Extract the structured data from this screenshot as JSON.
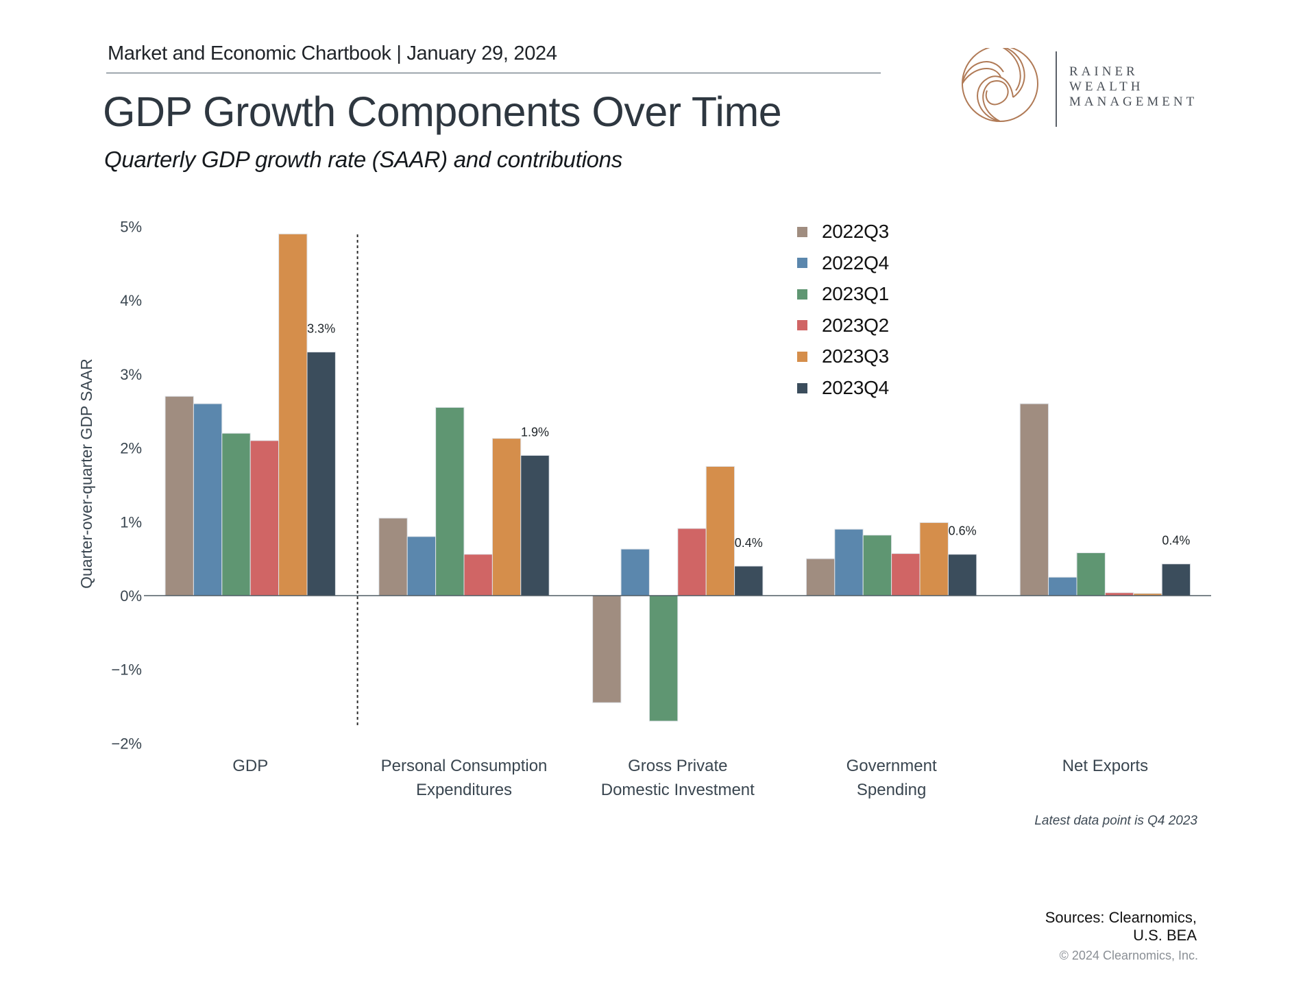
{
  "header": {
    "chartbook_label": "Market and Economic Chartbook | January 29, 2024",
    "title": "GDP Growth Components Over Time",
    "subtitle": "Quarterly GDP growth rate (SAAR) and contributions"
  },
  "logo": {
    "line1": "RAINER",
    "line2": "WEALTH",
    "line3": "MANAGEMENT",
    "icon": "spiral-circle-icon",
    "color": "#b07a56"
  },
  "chart_data": {
    "type": "bar",
    "title": "GDP Growth Components Over Time",
    "subtitle": "Quarterly GDP growth rate (SAAR) and contributions",
    "xlabel": "",
    "ylabel": "Quarter-over-quarter GDP SAAR",
    "ylim": [
      -2,
      5
    ],
    "yticks": [
      -2,
      -1,
      0,
      1,
      2,
      3,
      4,
      5
    ],
    "ytick_labels": [
      "−2%",
      "−1%",
      "0%",
      "1%",
      "2%",
      "3%",
      "4%",
      "5%"
    ],
    "grid": false,
    "legend_position": "top-right",
    "categories": [
      [
        "GDP"
      ],
      [
        "Personal Consumption",
        "Expenditures"
      ],
      [
        "Gross Private",
        "Domestic Investment"
      ],
      [
        "Government",
        "Spending"
      ],
      [
        "Net Exports"
      ]
    ],
    "series": [
      {
        "name": "2022Q3",
        "color": "#a08d80",
        "values": [
          2.7,
          1.05,
          -1.45,
          0.5,
          2.6
        ]
      },
      {
        "name": "2022Q4",
        "color": "#5b87ad",
        "values": [
          2.6,
          0.8,
          0.63,
          0.9,
          0.25
        ]
      },
      {
        "name": "2023Q1",
        "color": "#5f9672",
        "values": [
          2.2,
          2.55,
          -1.7,
          0.82,
          0.58
        ]
      },
      {
        "name": "2023Q2",
        "color": "#d06565",
        "values": [
          2.1,
          0.56,
          0.91,
          0.57,
          0.04
        ]
      },
      {
        "name": "2023Q3",
        "color": "#d58e4b",
        "values": [
          4.9,
          2.13,
          1.75,
          0.99,
          0.03
        ]
      },
      {
        "name": "2023Q4",
        "color": "#3b4d5c",
        "values": [
          3.3,
          1.9,
          0.4,
          0.56,
          0.43
        ]
      }
    ],
    "data_labels": [
      {
        "category_index": 0,
        "series": "2023Q4",
        "text": "3.3%"
      },
      {
        "category_index": 1,
        "series": "2023Q4",
        "text": "1.9%"
      },
      {
        "category_index": 2,
        "series": "2023Q4",
        "text": "0.4%"
      },
      {
        "category_index": 3,
        "series": "2023Q4",
        "text": "0.6%"
      },
      {
        "category_index": 4,
        "series": "2023Q4",
        "text": "0.4%"
      }
    ],
    "separator_after_category": 0,
    "annotation": "Latest data point is Q4 2023"
  },
  "footer": {
    "sources_line1": "Sources: Clearnomics,",
    "sources_line2": "U.S. BEA",
    "copyright": "© 2024 Clearnomics, Inc."
  }
}
